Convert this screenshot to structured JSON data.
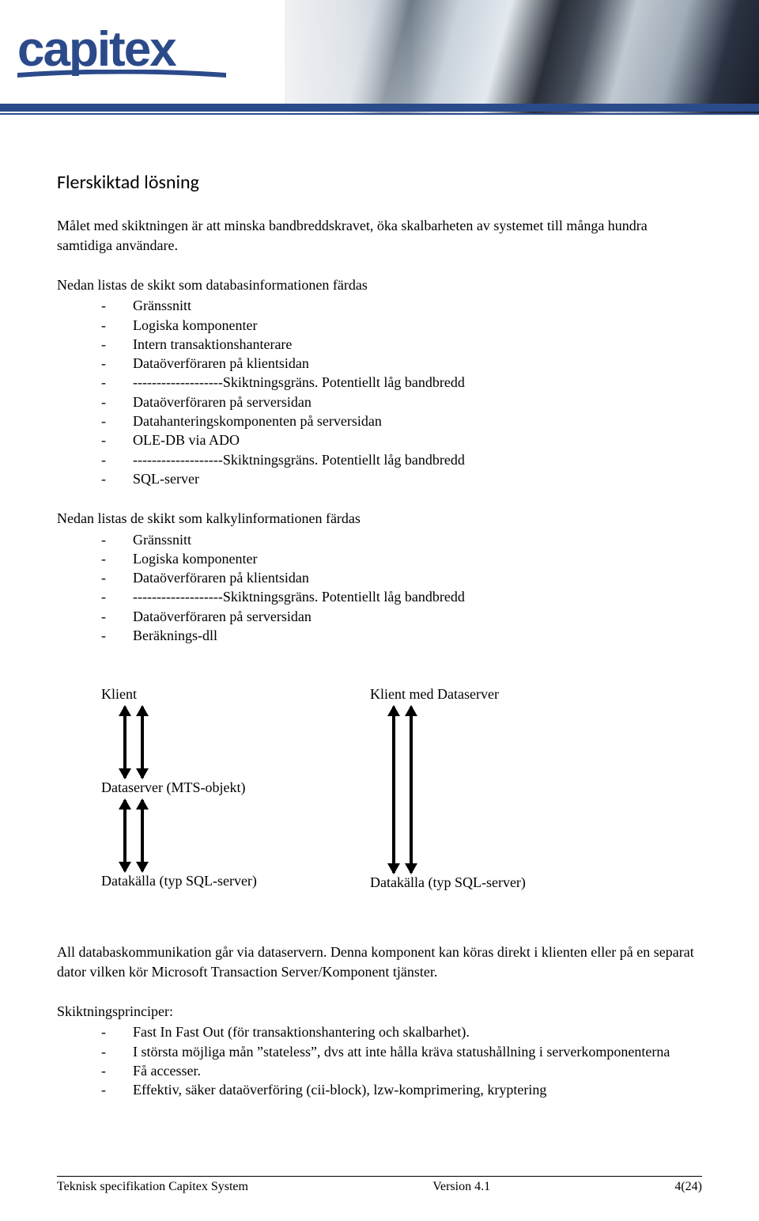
{
  "logo_text": "capitex",
  "heading": "Flerskiktad lösning",
  "intro": "Målet med skiktningen är att minska bandbreddskravet, öka skalbarheten av systemet till många hundra samtidiga användare.",
  "list1_intro": "Nedan listas de skikt som databasinformationen färdas",
  "list1": [
    "Gränssnitt",
    "Logiska komponenter",
    "Intern transaktionshanterare",
    "Dataöverföraren på klientsidan",
    "-------------------Skiktningsgräns. Potentiellt låg bandbredd",
    "Dataöverföraren på serversidan",
    "Datahanteringskomponenten på serversidan",
    "OLE-DB via ADO",
    "-------------------Skiktningsgräns. Potentiellt låg bandbredd",
    "SQL-server"
  ],
  "list2_intro": "Nedan listas de skikt som kalkylinformationen färdas",
  "list2": [
    "Gränssnitt",
    "Logiska komponenter",
    "Dataöverföraren på klientsidan",
    "-------------------Skiktningsgräns. Potentiellt låg bandbredd",
    "Dataöverföraren på serversidan",
    "Beräknings-dll"
  ],
  "diagram": {
    "left": {
      "top": "Klient",
      "mid": "Dataserver (MTS-objekt)",
      "bottom": "Datakälla (typ SQL-server)"
    },
    "right": {
      "top": "Klient med Dataserver",
      "bottom": "Datakälla (typ SQL-server)"
    }
  },
  "para2": "All databaskommunikation går via dataservern. Denna komponent kan köras direkt i klienten eller på en separat dator vilken kör Microsoft Transaction Server/Komponent tjänster.",
  "list3_intro": "Skiktningsprinciper:",
  "list3": [
    "Fast In Fast Out  (för transaktionshantering och skalbarhet).",
    "I största möjliga mån ”stateless”, dvs att inte hålla kräva statushållning i serverkomponenterna",
    "Få accesser.",
    "Effektiv, säker dataöverföring (cii-block), lzw-komprimering, kryptering"
  ],
  "footer": {
    "left": "Teknisk specifikation Capitex System",
    "center": "Version 4.1",
    "right": "4(24)"
  }
}
